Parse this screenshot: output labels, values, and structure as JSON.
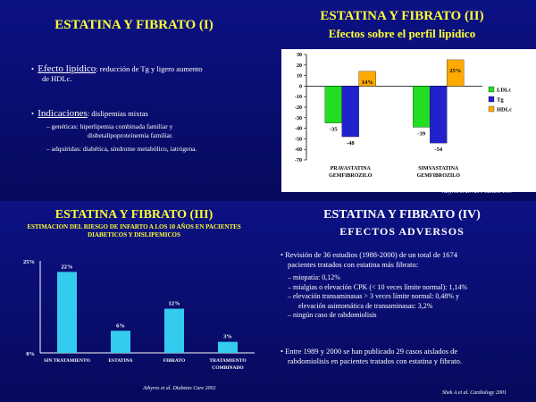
{
  "panel1": {
    "title": "ESTATINA Y FIBRATO (I)",
    "bullet1": {
      "label": "Efecto lipídico",
      "text": ": reducción de Tg y ligero aumento",
      "text2": "de HDLc."
    },
    "bullet2": {
      "label": "Indicaciones",
      "text": ": dislipemias mixtas"
    },
    "sub1": "– genéticas: hiperlipemia combinada familiar y",
    "sub1b": "disbetalipoproteinemia familiar.",
    "sub2": "– adquiridas: diabética, síndrome metabólico, iatrógena."
  },
  "panel2": {
    "title": "ESTATINA Y FIBRATO (II)",
    "subtitle": "Efectos sobre el perfil lipídico",
    "citation": "Athyros et al. Am J Cardiol 1997",
    "chart_data": {
      "type": "bar",
      "categories": [
        "PRAVASTATINA GEMFIBROZILO",
        "SIMVASTATINA GEMFIBROZILO"
      ],
      "category_lines": [
        [
          "PRAVASTATINA",
          "GEMFIBROZILO"
        ],
        [
          "SIMVASTATINA",
          "GEMFIBROZILO"
        ]
      ],
      "series": [
        {
          "name": "LDLc",
          "values": [
            -35,
            -39
          ],
          "color": "#22dd22"
        },
        {
          "name": "Tg",
          "values": [
            -48,
            -54
          ],
          "color": "#2222cc"
        },
        {
          "name": "HDLc",
          "values": [
            14,
            25
          ],
          "color": "#ffaa00"
        }
      ],
      "data_labels": [
        [
          "-35",
          "-48",
          "14%"
        ],
        [
          "-39",
          "-54",
          "25%"
        ]
      ],
      "ylim": [
        -70,
        30
      ],
      "yticks": [
        30,
        20,
        10,
        0,
        -10,
        -20,
        -30,
        -40,
        -50,
        -60,
        -70
      ],
      "legend": "right"
    }
  },
  "panel3": {
    "title": "ESTATINA Y FIBRATO (III)",
    "subtitle": "ESTIMACION DEL RIESGO DE INFARTO A LOS 10 AÑOS EN PACIENTES DIABETICOS Y DISLIPEMICOS",
    "citation": "Athyros et al. Diabetes Care 2002",
    "chart_data": {
      "type": "bar",
      "categories": [
        "SIN TRATAMIENTO",
        "ESTATINA",
        "FIBRATO",
        "TRATAMIENTO COMBINADO"
      ],
      "category_lines": [
        [
          "SIN TRATAMIENTO"
        ],
        [
          "ESTATINA"
        ],
        [
          "FIBRATO"
        ],
        [
          "TRATAMIENTO",
          "COMBINADO"
        ]
      ],
      "values": [
        22,
        6,
        12,
        3
      ],
      "data_labels": [
        "22%",
        "6%",
        "12%",
        "3%"
      ],
      "ylim": [
        0,
        25
      ],
      "yticks_labels": [
        "25%",
        "0%"
      ],
      "color": "#33ccee"
    }
  },
  "panel4": {
    "title": "ESTATINA Y FIBRATO (IV)",
    "subtitle": "EFECTOS ADVERSOS",
    "b1a": "•  Revisión de 36 estudios (1988-2000) de un total de 1674",
    "b1b": "pacientes tratados con estatina más fibrato:",
    "s1": "–  miopatía: 0,12%",
    "s2": "–  mialgias o elevación CPK (< 10 veces límite normal): 1,14%",
    "s3a": "–  elevación transaminasas > 3 veces límite normal: 0,48% y",
    "s3b": "elevación asintomática de transaminasas: 3,2%",
    "s4": "–  ningún caso de rabdomiolisis",
    "b2a": "•  Entre 1989 y 2000 se han publicado 29 casos aislados de",
    "b2b": "rabdomiolisis en pacientes tratados con estatina y fibrato.",
    "citation": "Shek A et al. Cardiology 2001"
  }
}
